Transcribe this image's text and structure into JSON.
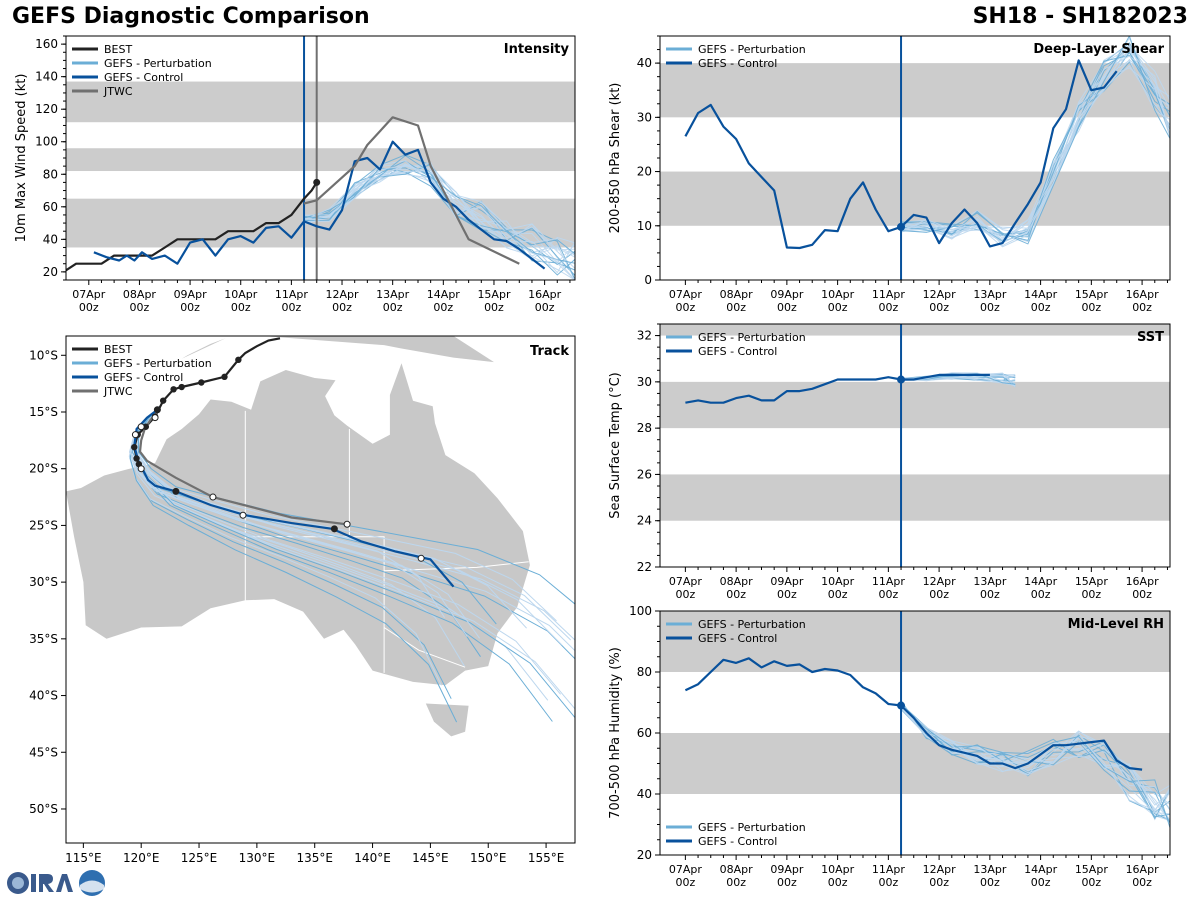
{
  "header": {
    "title": "GEFS Diagnostic Comparison",
    "storm_id": "SH18 - SH182023"
  },
  "colors": {
    "best": "#222222",
    "perturbation": "#6baed6",
    "control": "#08519c",
    "jtwc": "#707070",
    "band": "#cccccc",
    "land": "#c8c8c8",
    "pert_light": "#bdd7ee"
  },
  "time_ticks": [
    {
      "top": "07Apr",
      "bottom": "00z"
    },
    {
      "top": "08Apr",
      "bottom": "00z"
    },
    {
      "top": "09Apr",
      "bottom": "00z"
    },
    {
      "top": "10Apr",
      "bottom": "00z"
    },
    {
      "top": "11Apr",
      "bottom": "00z"
    },
    {
      "top": "12Apr",
      "bottom": "00z"
    },
    {
      "top": "13Apr",
      "bottom": "00z"
    },
    {
      "top": "14Apr",
      "bottom": "00z"
    },
    {
      "top": "15Apr",
      "bottom": "00z"
    },
    {
      "top": "16Apr",
      "bottom": "00z"
    }
  ],
  "chart_data": [
    {
      "id": "intensity",
      "type": "line",
      "title": "Intensity",
      "ylabel": "10m Max Wind Speed (kt)",
      "xlim_days": [
        -0.45,
        9.6
      ],
      "ylim": [
        15,
        165
      ],
      "yticks": [
        20,
        40,
        60,
        80,
        100,
        120,
        140,
        160
      ],
      "bands": [
        [
          35,
          65
        ],
        [
          82,
          96
        ],
        [
          112,
          137
        ]
      ],
      "vlines": [
        {
          "x": 4.25,
          "color": "control"
        },
        {
          "x": 4.5,
          "color": "jtwc"
        }
      ],
      "legend": [
        "BEST",
        "GEFS - Perturbation",
        "GEFS - Control",
        "JTWC"
      ],
      "series": [
        {
          "name": "BEST",
          "x": [
            -0.5,
            -0.25,
            0,
            0.25,
            0.5,
            0.75,
            1,
            1.25,
            1.5,
            1.75,
            2,
            2.25,
            2.5,
            2.75,
            3,
            3.25,
            3.5,
            3.75,
            4,
            4.25,
            4.4,
            4.5
          ],
          "y": [
            20,
            25,
            25,
            25,
            30,
            30,
            30,
            30,
            35,
            40,
            40,
            40,
            40,
            45,
            45,
            45,
            50,
            50,
            55,
            65,
            70,
            75
          ]
        },
        {
          "name": "GEFS - Control",
          "x": [
            0.1,
            0.35,
            0.6,
            0.75,
            0.9,
            1.05,
            1.25,
            1.5,
            1.75,
            2,
            2.25,
            2.5,
            2.75,
            3,
            3.25,
            3.5,
            3.75,
            4,
            4.25,
            4.5,
            4.75,
            5,
            5.25,
            5.5,
            5.75,
            6,
            6.25,
            6.5,
            6.75,
            7,
            7.25,
            7.5,
            7.75,
            8,
            8.25,
            8.5,
            8.75,
            9
          ],
          "y": [
            32,
            29,
            27,
            30,
            27,
            32,
            28,
            30,
            25,
            38,
            40,
            30,
            40,
            42,
            38,
            47,
            48,
            41,
            51,
            48,
            46,
            58,
            88,
            90,
            83,
            100,
            92,
            95,
            75,
            65,
            60,
            52,
            46,
            40,
            39,
            34,
            28,
            22
          ]
        },
        {
          "name": "JTWC",
          "x": [
            4.25,
            4.5,
            5.25,
            5.5,
            6,
            6.5,
            6.75,
            7.5,
            8.5
          ],
          "y": [
            62,
            64,
            85,
            98,
            115,
            110,
            85,
            40,
            25
          ]
        },
        {
          "name": "GEFS - Perturbation",
          "x": [
            4.25,
            4.75,
            5.25,
            5.75,
            6.25,
            6.75,
            7.25,
            7.75,
            8.25,
            8.75,
            9.25,
            9.6
          ],
          "y": [
            52,
            55,
            70,
            80,
            86,
            80,
            62,
            55,
            45,
            38,
            30,
            25
          ]
        }
      ]
    },
    {
      "id": "shear",
      "type": "line",
      "title": "Deep-Layer Shear",
      "ylabel": "200-850 hPa Shear (kt)",
      "xlim_days": [
        -0.5,
        9.55
      ],
      "ylim": [
        0,
        45
      ],
      "yticks": [
        0,
        10,
        20,
        30,
        40
      ],
      "bands": [
        [
          10,
          20
        ],
        [
          30,
          40
        ]
      ],
      "vlines": [
        {
          "x": 4.25,
          "color": "control"
        }
      ],
      "legend": [
        "GEFS - Perturbation",
        "GEFS - Control"
      ],
      "series": [
        {
          "name": "GEFS - Control",
          "x": [
            0,
            0.25,
            0.5,
            0.75,
            1,
            1.25,
            1.5,
            1.75,
            2,
            2.25,
            2.5,
            2.75,
            3,
            3.25,
            3.5,
            3.75,
            4,
            4.25,
            4.5,
            4.75,
            5,
            5.25,
            5.5,
            5.75,
            6,
            6.25,
            6.5,
            6.75,
            7,
            7.25,
            7.5,
            7.75,
            8,
            8.25,
            8.5
          ],
          "y": [
            26.5,
            30.8,
            32.3,
            28.3,
            26,
            21.5,
            19,
            16.5,
            6,
            5.9,
            6.5,
            9.2,
            9,
            15,
            18,
            13,
            9,
            9.8,
            12,
            11.5,
            6.8,
            10.5,
            13,
            10.5,
            6.2,
            6.8,
            10.5,
            14,
            18,
            28,
            31.5,
            40.5,
            35,
            35.5,
            38.5
          ]
        },
        {
          "name": "GEFS - Perturbation",
          "x": [
            4.25,
            4.75,
            5.25,
            5.75,
            6.25,
            6.75,
            7.25,
            7.75,
            8.25,
            8.75,
            9.25,
            9.55
          ],
          "y": [
            9.8,
            10,
            9,
            11,
            8,
            9,
            20,
            30,
            38,
            42,
            35,
            30
          ]
        }
      ]
    },
    {
      "id": "sst",
      "type": "line",
      "title": "SST",
      "ylabel": "Sea Surface Temp (°C)",
      "xlim_days": [
        -0.5,
        9.55
      ],
      "ylim": [
        22,
        32.5
      ],
      "yticks": [
        22,
        24,
        26,
        28,
        30,
        32
      ],
      "bands": [
        [
          24,
          26
        ],
        [
          28,
          30
        ],
        [
          32,
          33
        ]
      ],
      "vlines": [
        {
          "x": 4.25,
          "color": "control"
        }
      ],
      "legend": [
        "GEFS - Perturbation",
        "GEFS - Control"
      ],
      "series": [
        {
          "name": "GEFS - Control",
          "x": [
            0,
            0.25,
            0.5,
            0.75,
            1,
            1.25,
            1.5,
            1.75,
            2,
            2.25,
            2.5,
            2.75,
            3,
            3.25,
            3.5,
            3.75,
            4,
            4.25,
            4.5,
            4.75,
            5,
            5.25,
            5.5,
            5.75,
            6
          ],
          "y": [
            29.1,
            29.2,
            29.1,
            29.1,
            29.3,
            29.4,
            29.2,
            29.2,
            29.6,
            29.6,
            29.7,
            29.9,
            30.1,
            30.1,
            30.1,
            30.1,
            30.2,
            30.1,
            30.1,
            30.2,
            30.3,
            30.3,
            30.3,
            30.3,
            30.3
          ]
        },
        {
          "name": "GEFS - Perturbation",
          "x": [
            4.25,
            4.75,
            5.25,
            5.75,
            6.25,
            6.5
          ],
          "y": [
            30.1,
            30.15,
            30.25,
            30.2,
            30.15,
            30.05
          ]
        }
      ]
    },
    {
      "id": "rh",
      "type": "line",
      "title": "Mid-Level RH",
      "ylabel": "700-500 hPa Humidity (%)",
      "xlim_days": [
        -0.5,
        9.55
      ],
      "ylim": [
        20,
        100
      ],
      "yticks": [
        20,
        40,
        60,
        80,
        100
      ],
      "bands": [
        [
          40,
          60
        ],
        [
          80,
          100
        ]
      ],
      "vlines": [
        {
          "x": 4.25,
          "color": "control"
        }
      ],
      "legend": [
        "GEFS - Perturbation",
        "GEFS - Control"
      ],
      "series": [
        {
          "name": "GEFS - Control",
          "x": [
            0,
            0.25,
            0.5,
            0.75,
            1,
            1.25,
            1.5,
            1.75,
            2,
            2.25,
            2.5,
            2.75,
            3,
            3.25,
            3.5,
            3.75,
            4,
            4.25,
            4.5,
            4.75,
            5,
            5.25,
            5.5,
            5.75,
            6,
            6.25,
            6.5,
            6.75,
            7,
            7.25,
            7.5,
            7.75,
            8,
            8.25,
            8.5,
            8.75,
            9
          ],
          "y": [
            74,
            76,
            80,
            84,
            83,
            84.5,
            81.5,
            83.5,
            82,
            82.5,
            80,
            81,
            80.5,
            79,
            75,
            73,
            69.5,
            69,
            65,
            60,
            56,
            54.5,
            53.5,
            52.5,
            50,
            50,
            48.5,
            50,
            53,
            56,
            56,
            56.5,
            57,
            57.5,
            51,
            48.5,
            48
          ]
        },
        {
          "name": "GEFS - Perturbation",
          "x": [
            4.25,
            4.75,
            5.25,
            5.75,
            6.25,
            6.75,
            7.25,
            7.75,
            8.25,
            8.75,
            9.25,
            9.55
          ],
          "y": [
            69,
            60,
            55,
            53,
            51,
            50,
            54,
            56,
            52,
            44,
            38,
            36
          ]
        }
      ]
    },
    {
      "id": "track",
      "type": "scatter",
      "title": "Track",
      "lon_range": [
        113.5,
        157.5
      ],
      "lat_range": [
        -53,
        -8.3
      ],
      "lon_ticks": [
        "115°E",
        "120°E",
        "125°E",
        "130°E",
        "135°E",
        "140°E",
        "145°E",
        "150°E",
        "155°E"
      ],
      "lon_tick_values": [
        115,
        120,
        125,
        130,
        135,
        140,
        145,
        150,
        155
      ],
      "lat_ticks": [
        "10°S",
        "15°S",
        "20°S",
        "25°S",
        "30°S",
        "35°S",
        "40°S",
        "45°S",
        "50°S"
      ],
      "lat_tick_values": [
        -10,
        -15,
        -20,
        -25,
        -30,
        -35,
        -40,
        -45,
        -50
      ],
      "legend": [
        "BEST",
        "GEFS - Perturbation",
        "GEFS - Control",
        "JTWC"
      ],
      "series": [
        {
          "name": "BEST",
          "lon": [
            132,
            131,
            130,
            129,
            128.4,
            127.2,
            125.2,
            123.5,
            122.8,
            121.9,
            121.2,
            120.4,
            119.7,
            119.4,
            119.6,
            119.8
          ],
          "lat": [
            -8.5,
            -8.7,
            -9.2,
            -9.8,
            -10.4,
            -11.9,
            -12.4,
            -12.8,
            -13,
            -14,
            -15.4,
            -16.3,
            -17,
            -18.1,
            -19.1,
            -19.6
          ]
        },
        {
          "name": "GEFS - Control",
          "lon": [
            121.4,
            120.5,
            119.6,
            119.4,
            119.8,
            120.2,
            120.6,
            121.2,
            123,
            126,
            129,
            133,
            136.5,
            139,
            142,
            145,
            147
          ],
          "lat": [
            -14.8,
            -15.5,
            -16.5,
            -18,
            -19.5,
            -20.2,
            -21,
            -21.5,
            -22,
            -23.2,
            -24.1,
            -24.8,
            -25.3,
            -26.4,
            -27.3,
            -28,
            -30.4
          ]
        },
        {
          "name": "JTWC",
          "lon": [
            121.4,
            120.8,
            120.3,
            120,
            119.9,
            120.5,
            123,
            126.2,
            130,
            133,
            137.8
          ],
          "lat": [
            -15,
            -15.7,
            -16.5,
            -17.5,
            -18.5,
            -19.3,
            -20.8,
            -22.5,
            -23.5,
            -24.3,
            -24.9
          ]
        },
        {
          "name": "GEFS - Perturbation",
          "lon": [
            121.6,
            120.6,
            119.6,
            119.4,
            120.2,
            122,
            125.5,
            130,
            135,
            140,
            145,
            149.5,
            152.8
          ],
          "lat": [
            -14.5,
            -15.6,
            -17,
            -18.8,
            -20.5,
            -22.4,
            -23.8,
            -25.5,
            -27,
            -28.6,
            -30.3,
            -33.2,
            -37.5
          ]
        }
      ],
      "best_points": {
        "lon": [
          128.4,
          127.2,
          125.2,
          123.5,
          122.8,
          121.9,
          121.2,
          120.4,
          119.7,
          119.4,
          119.6,
          119.8
        ],
        "lat": [
          -10.4,
          -11.9,
          -12.4,
          -12.8,
          -13,
          -14,
          -15.4,
          -16.3,
          -17,
          -18.1,
          -19.1,
          -19.6
        ]
      },
      "control_points": {
        "lon": [
          121.4,
          120,
          123,
          128.8,
          136.7,
          144.2
        ],
        "lat": [
          -14.8,
          -16.3,
          -22,
          -24.1,
          -25.3,
          -27.9
        ]
      },
      "jtwc_points": {
        "lon": [
          121.2,
          119.5,
          120,
          126.2,
          137.8
        ],
        "lat": [
          -15.5,
          -17,
          -20,
          -22.5,
          -24.9
        ]
      }
    }
  ]
}
